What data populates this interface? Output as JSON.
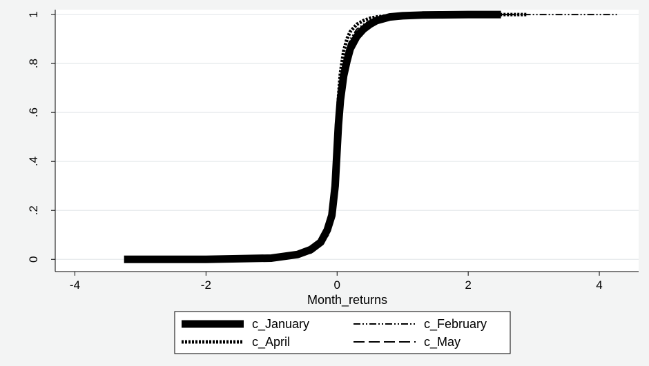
{
  "chart_data": {
    "type": "line",
    "title": "",
    "xlabel": "Month_returns",
    "ylabel": "",
    "xlim": [
      -4.3,
      4.6
    ],
    "ylim": [
      -0.05,
      1.02
    ],
    "x_ticks": [
      -4,
      -2,
      0,
      2,
      4
    ],
    "x_tick_labels": [
      "-4",
      "-2",
      "0",
      "2",
      "4"
    ],
    "y_ticks": [
      0,
      0.2,
      0.4,
      0.6,
      0.8,
      1
    ],
    "y_tick_labels": [
      "0",
      ".2",
      ".4",
      ".6",
      ".8",
      "1"
    ],
    "grid": true,
    "legend_position": "bottom",
    "series": [
      {
        "name": "c_January",
        "style": "solid-thick",
        "color": "#000000",
        "x": [
          -3.25,
          -2.0,
          -1.0,
          -0.6,
          -0.4,
          -0.25,
          -0.15,
          -0.08,
          -0.03,
          0.0,
          0.02,
          0.05,
          0.1,
          0.15,
          0.2,
          0.3,
          0.4,
          0.5,
          0.6,
          0.8,
          1.0,
          1.3,
          1.6,
          2.0,
          2.5
        ],
        "y": [
          0.0,
          0.0,
          0.005,
          0.02,
          0.04,
          0.07,
          0.12,
          0.18,
          0.3,
          0.45,
          0.55,
          0.65,
          0.75,
          0.81,
          0.86,
          0.91,
          0.94,
          0.96,
          0.975,
          0.99,
          0.995,
          0.998,
          0.999,
          1.0,
          1.0
        ]
      },
      {
        "name": "c_February",
        "style": "dash-dot-dot",
        "color": "#000000",
        "x": [
          -3.2,
          -2.0,
          -1.0,
          -0.6,
          -0.4,
          -0.25,
          -0.15,
          -0.08,
          -0.03,
          0.0,
          0.02,
          0.05,
          0.1,
          0.15,
          0.2,
          0.3,
          0.4,
          0.5,
          0.6,
          0.8,
          1.0,
          1.3,
          1.6,
          2.0,
          2.5,
          3.0,
          3.5,
          4.3
        ],
        "y": [
          0.0,
          0.0,
          0.004,
          0.015,
          0.035,
          0.065,
          0.11,
          0.17,
          0.3,
          0.5,
          0.6,
          0.7,
          0.8,
          0.86,
          0.9,
          0.94,
          0.96,
          0.975,
          0.985,
          0.993,
          0.997,
          0.999,
          1.0,
          1.0,
          1.0,
          1.0,
          1.0,
          1.0
        ]
      },
      {
        "name": "c_April",
        "style": "dotted",
        "color": "#000000",
        "x": [
          -3.0,
          -2.0,
          -1.0,
          -0.6,
          -0.4,
          -0.25,
          -0.15,
          -0.08,
          -0.03,
          0.0,
          0.02,
          0.05,
          0.1,
          0.15,
          0.2,
          0.3,
          0.4,
          0.5,
          0.6,
          0.8,
          1.0,
          1.3,
          1.6,
          2.0,
          2.5,
          2.9
        ],
        "y": [
          0.0,
          0.0,
          0.004,
          0.015,
          0.03,
          0.06,
          0.1,
          0.16,
          0.3,
          0.55,
          0.66,
          0.76,
          0.85,
          0.9,
          0.93,
          0.96,
          0.975,
          0.985,
          0.99,
          0.996,
          0.998,
          0.999,
          1.0,
          1.0,
          1.0,
          1.0
        ]
      },
      {
        "name": "c_May",
        "style": "long-dash",
        "color": "#000000",
        "x": [
          -3.2,
          -2.0,
          -1.0,
          -0.6,
          -0.4,
          -0.25,
          -0.15,
          -0.08,
          -0.03,
          0.0,
          0.02,
          0.05,
          0.1,
          0.15,
          0.2,
          0.3,
          0.4,
          0.5,
          0.6,
          0.8,
          1.0,
          1.3,
          1.6,
          2.0,
          2.6
        ],
        "y": [
          0.0,
          0.0,
          0.004,
          0.016,
          0.035,
          0.065,
          0.11,
          0.17,
          0.3,
          0.5,
          0.6,
          0.7,
          0.79,
          0.85,
          0.89,
          0.93,
          0.955,
          0.97,
          0.98,
          0.99,
          0.996,
          0.999,
          1.0,
          1.0,
          1.0
        ]
      }
    ],
    "legend": [
      {
        "label": "c_January",
        "series": 0
      },
      {
        "label": "c_February",
        "series": 1
      },
      {
        "label": "c_April",
        "series": 2
      },
      {
        "label": "c_May",
        "series": 3
      }
    ]
  }
}
